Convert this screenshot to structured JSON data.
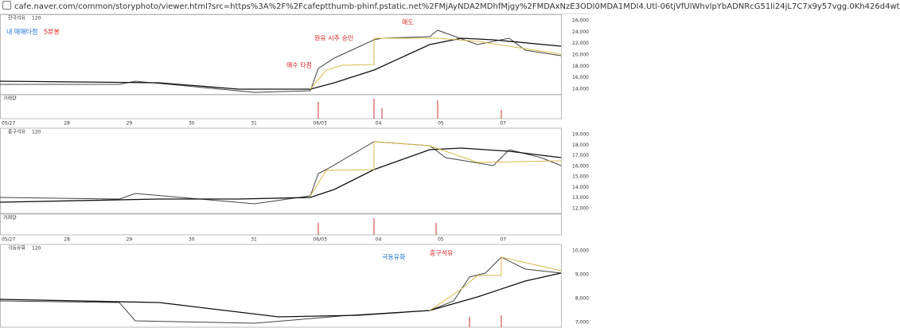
{
  "url": "cafe.naver.com/common/storyphoto/viewer.html?src=https%3A%2F%2Fcafeptthumb-phinf.pstatic.net%2FMjAyNDA2MDhfMjgy%2FMDAxNzE3ODI0MDA1MDI4.Utl-06tjVfUlWhvlpYbADNRcG51Ii24jL7C7x9y57vgg.0Kh426d4wt",
  "dates": [
    "05/27",
    "28",
    "29",
    "30",
    "31",
    "06/03",
    "04",
    "05",
    "07"
  ],
  "panels": [
    {
      "name": "한국석유",
      "ma": "120",
      "volume": "거래량",
      "ticks": [
        "26,000",
        "24,000",
        "22,000",
        "20,000",
        "18,000",
        "16,000",
        "14,000"
      ]
    },
    {
      "name": "흥구석유",
      "ma": "120",
      "volume": "거래량",
      "ticks": [
        "19,000",
        "18,000",
        "17,000",
        "16,000",
        "15,000",
        "14,000",
        "13,000",
        "12,000"
      ]
    },
    {
      "name": "극동유화",
      "ma": "120",
      "ticks": [
        "10,000",
        "9,000",
        "8,000",
        "7,000"
      ]
    }
  ],
  "annotations": [
    "내 매매타점",
    "5분봉",
    "원유 시추 승인",
    "매수 타점",
    "매도",
    "흥구석유",
    "극동유화"
  ]
}
